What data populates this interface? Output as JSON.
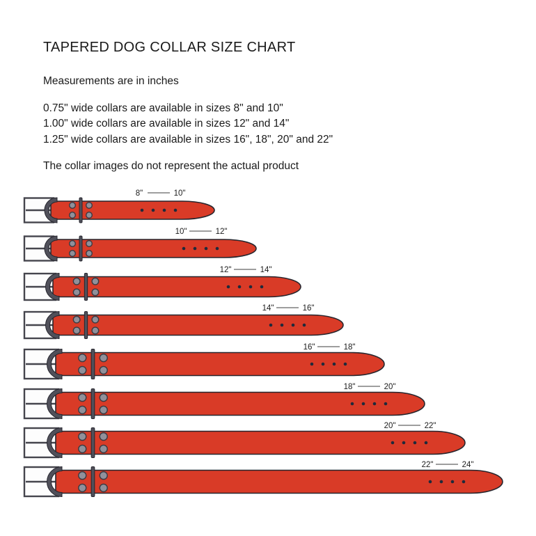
{
  "page": {
    "title": "TAPERED DOG COLLAR SIZE CHART",
    "subtitle": "Measurements are in inches",
    "size_lines": [
      "0.75\" wide collars are available in sizes 8\" and 10\"",
      "1.00\" wide collars are available in sizes 12\" and 14\"",
      "1.25\" wide collars are available in sizes 16\", 18\", 20\" and 22\""
    ],
    "note": "The collar images do not represent the actual product"
  },
  "collars": {
    "rows": [
      {
        "start_label": "8\"",
        "end_label": "10\"",
        "width_in": "0.75"
      },
      {
        "start_label": "10\"",
        "end_label": "12\"",
        "width_in": "0.75"
      },
      {
        "start_label": "12\"",
        "end_label": "14\"",
        "width_in": "1.00"
      },
      {
        "start_label": "14\"",
        "end_label": "16\"",
        "width_in": "1.00"
      },
      {
        "start_label": "16\"",
        "end_label": "18\"",
        "width_in": "1.25"
      },
      {
        "start_label": "18\"",
        "end_label": "20\"",
        "width_in": "1.25"
      },
      {
        "start_label": "20\"",
        "end_label": "22\"",
        "width_in": "1.25"
      },
      {
        "start_label": "22\"",
        "end_label": "24\"",
        "width_in": "1.25"
      }
    ]
  },
  "colors": {
    "belt_red": "#d93b27",
    "outline": "#26262e",
    "hardware_dark": "#50505a",
    "hardware_stroke": "#3a3a42",
    "metal_gray": "#90909a",
    "hole": "#202a3a",
    "buckle_frame_stroke": "#45454d",
    "buckle_frame_fill": "#fdfdfd",
    "label_line": "#3c3c3c",
    "text": "#1a1a1a",
    "background": "#ffffff"
  }
}
